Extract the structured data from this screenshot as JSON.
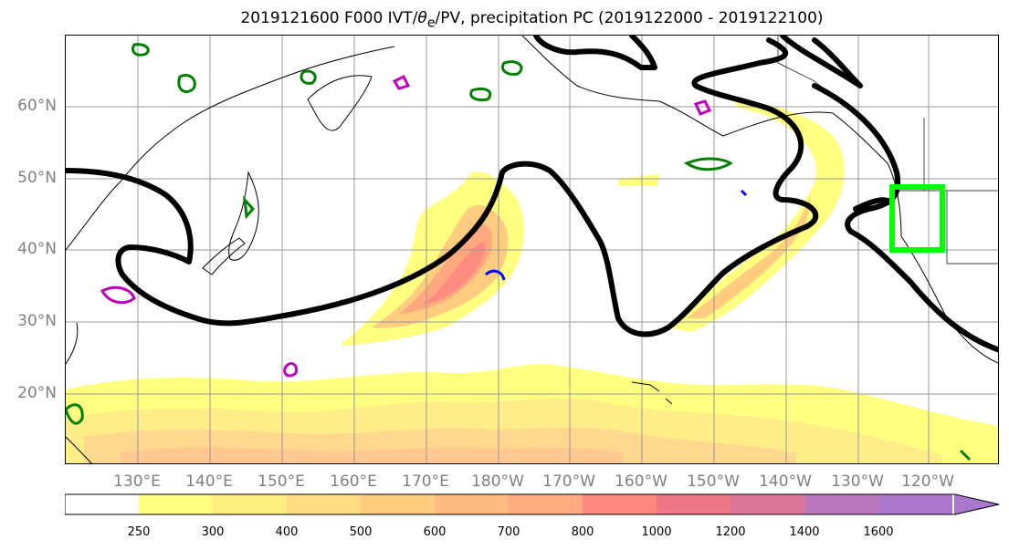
{
  "title": {
    "prefix": "2019121600 F000 IVT/",
    "theta": "θ",
    "sub": "e",
    "suffix": "/PV, precipitation PC (2019122000 - 2019122100)"
  },
  "map": {
    "lat_labels": [
      "60°N",
      "50°N",
      "40°N",
      "30°N",
      "20°N"
    ],
    "lon_labels": [
      "130°E",
      "140°E",
      "150°E",
      "160°E",
      "170°E",
      "180°W",
      "170°W",
      "160°W",
      "150°W",
      "140°W",
      "130°W",
      "120°W"
    ],
    "highlight_box_color": "#00ff00",
    "ivt_contour_color": "#000000",
    "pv_colors": [
      "#008000",
      "#0000ff",
      "#c000c0"
    ]
  },
  "colorbar": {
    "ticks": [
      "250",
      "300",
      "400",
      "500",
      "600",
      "700",
      "800",
      "1000",
      "1200",
      "1400",
      "1600"
    ],
    "colors": [
      "#ffffff",
      "#ffff80",
      "#ffee80",
      "#ffdd80",
      "#ffcc80",
      "#ffbb80",
      "#ffaa80",
      "#ff8880",
      "#ee7788",
      "#dd7799",
      "#bb77bb",
      "#aa77cc"
    ]
  }
}
